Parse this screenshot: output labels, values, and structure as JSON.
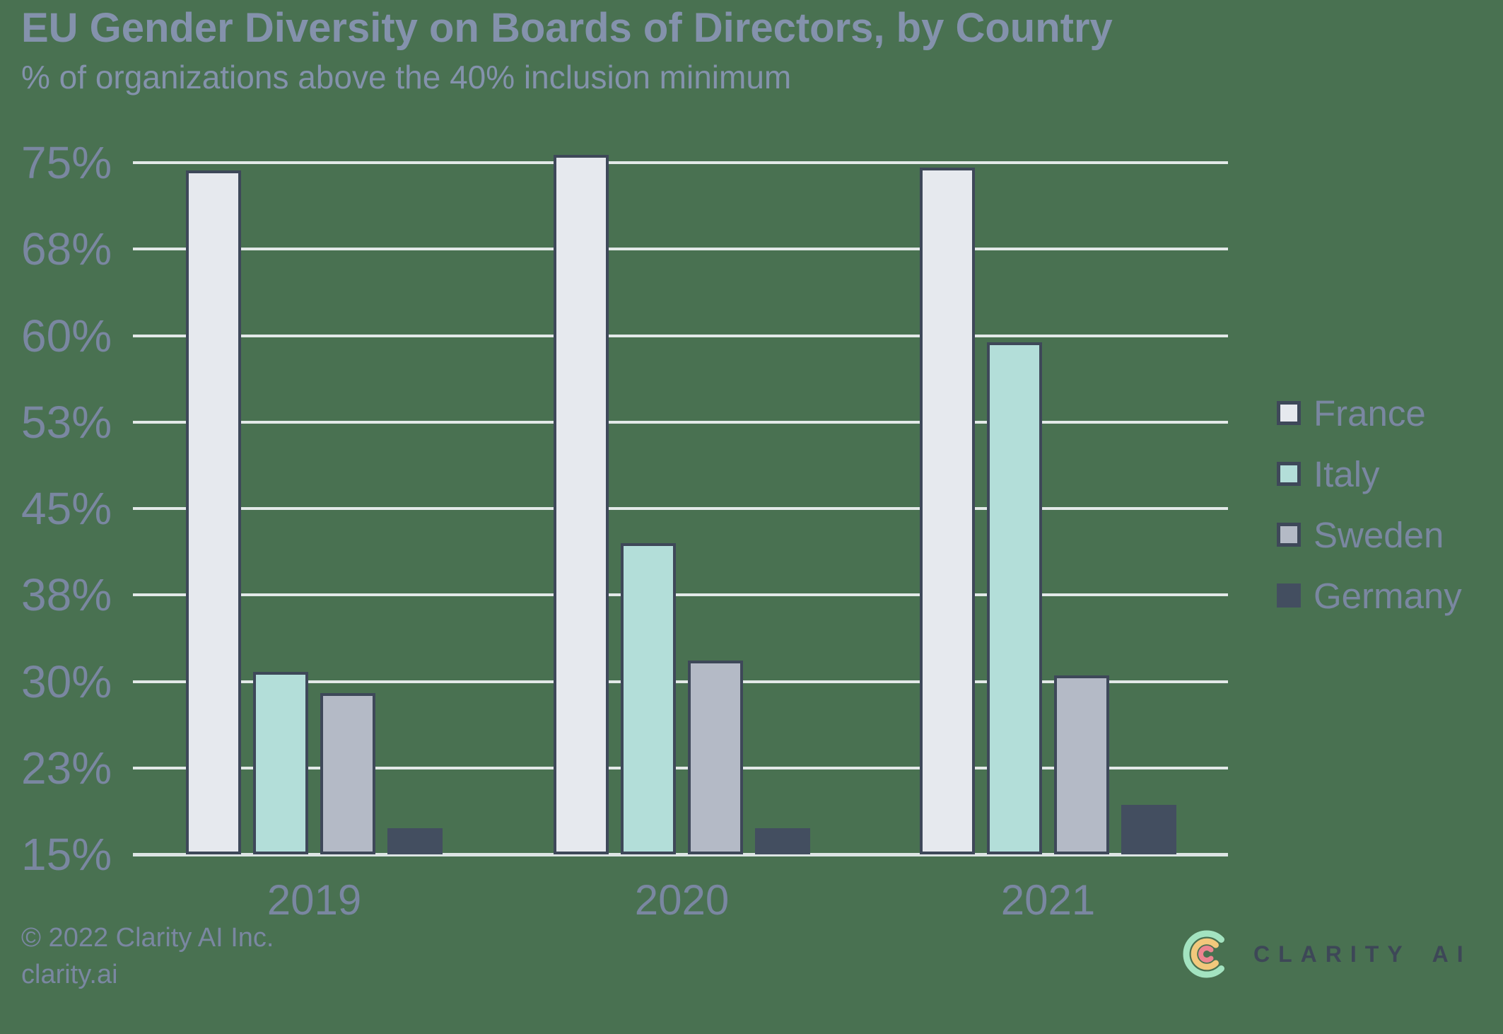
{
  "header": {
    "title": "EU Gender Diversity on Boards of Directors, by Country",
    "subtitle": "% of organizations above the 40% inclusion minimum"
  },
  "chart_data": {
    "type": "bar",
    "title": "EU Gender Diversity on Boards of Directors, by Country",
    "subtitle": "% of organizations above the 40% inclusion minimum",
    "categories": [
      "2019",
      "2020",
      "2021"
    ],
    "series": [
      {
        "name": "France",
        "color": "#e6e9ee",
        "border": "#3e4859",
        "values": [
          74.3,
          75.7,
          74.6
        ]
      },
      {
        "name": "Italy",
        "color": "#b3ded9",
        "border": "#3e4859",
        "values": [
          30.8,
          42.0,
          59.4
        ]
      },
      {
        "name": "Sweden",
        "color": "#b4bac6",
        "border": "#3e4859",
        "values": [
          29.0,
          31.8,
          30.5
        ]
      },
      {
        "name": "Germany",
        "color": "#434e60",
        "border": "#434e60",
        "values": [
          17.3,
          17.3,
          19.3
        ]
      }
    ],
    "xlabel": "",
    "ylabel": "",
    "ylim": [
      15,
      75
    ],
    "y_ticks": [
      15,
      22.5,
      30,
      37.5,
      45,
      52.5,
      60,
      67.5,
      75
    ],
    "y_tick_labels": [
      "15%",
      "23%",
      "30%",
      "38%",
      "45%",
      "53%",
      "60%",
      "68%",
      "75%"
    ],
    "grid": true,
    "legend_position": "right"
  },
  "footer": {
    "copyright": "© 2022 Clarity AI Inc.",
    "website": "clarity.ai"
  },
  "logo": {
    "wordmark_primary": "CLARITY",
    "wordmark_secondary": "AI"
  },
  "colors": {
    "background": "#497151",
    "gridline": "#e3e9e8",
    "text_title": "#8492ac",
    "text_labels": "#7a87a1",
    "bar_border": "#3e4859",
    "logo_text": "#3d4757",
    "logo_arc_outer": "#a3e3c0",
    "logo_arc_middle": "#f2c87c",
    "logo_arc_inner": "#ec8490"
  }
}
